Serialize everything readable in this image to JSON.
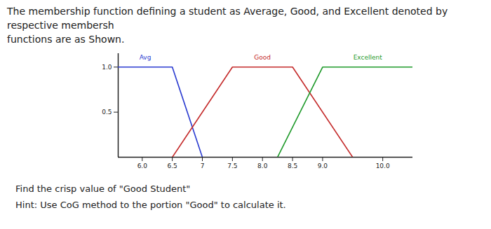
{
  "chart_data": {
    "type": "line",
    "title": "The membership function defining a student as Average, Good, and Excellent denoted by respective membersh\nfunctions are as Shown.",
    "annotations": [
      "Find the crisp value of \"Good Student\"",
      "Hint: Use CoG method to the portion \"Good\" to calculate it."
    ],
    "series": [
      {
        "name": "Avg",
        "color": "#2a3bd0",
        "x": [
          5.6,
          6.5,
          7.0
        ],
        "values": [
          1,
          1,
          0
        ]
      },
      {
        "name": "Good",
        "color": "#c42a2a",
        "x": [
          6.5,
          7.5,
          8.5,
          9.5
        ],
        "values": [
          0,
          1,
          1,
          0
        ]
      },
      {
        "name": "Excellent",
        "color": "#1e9a2a",
        "x": [
          8.25,
          9.0,
          10.5
        ],
        "values": [
          0,
          1,
          1
        ]
      }
    ],
    "xlim": [
      5.6,
      10.5
    ],
    "ylim": [
      0,
      1.15
    ],
    "xticks": [
      {
        "value": 6,
        "label": "6.0"
      },
      6.5,
      7,
      7.5,
      {
        "value": 8,
        "label": "8.0"
      },
      8.5,
      {
        "value": 9,
        "label": "9.0"
      },
      {
        "value": 10,
        "label": "10.0"
      }
    ],
    "yticks": [
      0.5,
      {
        "value": 1,
        "label": "1.0"
      }
    ],
    "grid": false
  }
}
